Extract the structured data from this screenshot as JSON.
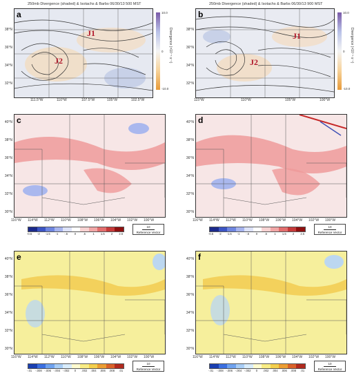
{
  "panels_top": [
    {
      "letter": "a",
      "title": "250mb Divergence (shaded) & Isotachs & Barbs 06/30/13 500 MST",
      "yticks": [
        "38°N",
        "36°N",
        "34°N",
        "32°N"
      ],
      "xticks": [
        "111.5°W",
        "110°W",
        "107.5°W",
        "105°W",
        "102.5°W"
      ],
      "labels": [
        "J1",
        "J2"
      ],
      "cbar_ticks": [
        "10.0",
        "7.5",
        "5.0",
        "2.5",
        "0",
        "-2.5",
        "-5.0",
        "-7.5",
        "-10.0"
      ],
      "cbar_label": "Divergence (×10⁻⁵ s⁻¹)"
    },
    {
      "letter": "b",
      "title": "250mb Divergence (shaded) & Isotachs & Barbs 06/30/13 900 MST",
      "yticks": [
        "38°N",
        "36°N",
        "34°N",
        "32°N"
      ],
      "xticks": [
        "115°W",
        "112.5°W",
        "110°W",
        "107.5°W",
        "105°W",
        "102.5°W",
        "100°W"
      ],
      "labels": [
        "J1",
        "J2"
      ],
      "cbar_ticks": [
        "10.0",
        "7.5",
        "5.0",
        "2.5",
        "0",
        "-2.5",
        "-5.0",
        "-7.5",
        "-10.0"
      ],
      "cbar_label": "Divergence (×10⁻⁵ s⁻¹)"
    }
  ],
  "panels_mid": [
    {
      "letter": "c"
    },
    {
      "letter": "d"
    }
  ],
  "panels_bot": [
    {
      "letter": "e"
    },
    {
      "letter": "f"
    }
  ],
  "lat_ticks": [
    "40°N",
    "38°N",
    "36°N",
    "34°N",
    "32°N",
    "30°N"
  ],
  "lon_ticks": [
    "116°W",
    "114°W",
    "112°W",
    "110°W",
    "108°W",
    "106°W",
    "104°W",
    "102°W",
    "100°W"
  ],
  "mid_cbar_ticks": [
    "-0.5",
    "-2",
    "-1.5",
    "-1",
    "-.5",
    "0",
    ".5",
    "1",
    "1.5",
    "2",
    "2.5"
  ],
  "bot_cbar_ticks": [
    "-.01",
    "-.008",
    "-.006",
    "-.004",
    "-.002",
    "0",
    ".002",
    ".004",
    ".006",
    ".008",
    ".01"
  ],
  "ref_vector": {
    "value": "10",
    "label": "Reference Vector"
  },
  "colors": {
    "pos": "#e8585a",
    "neg": "#4a6fd8",
    "bg_mid": "#f2dede",
    "bg_bot": "#f6ef9c"
  }
}
